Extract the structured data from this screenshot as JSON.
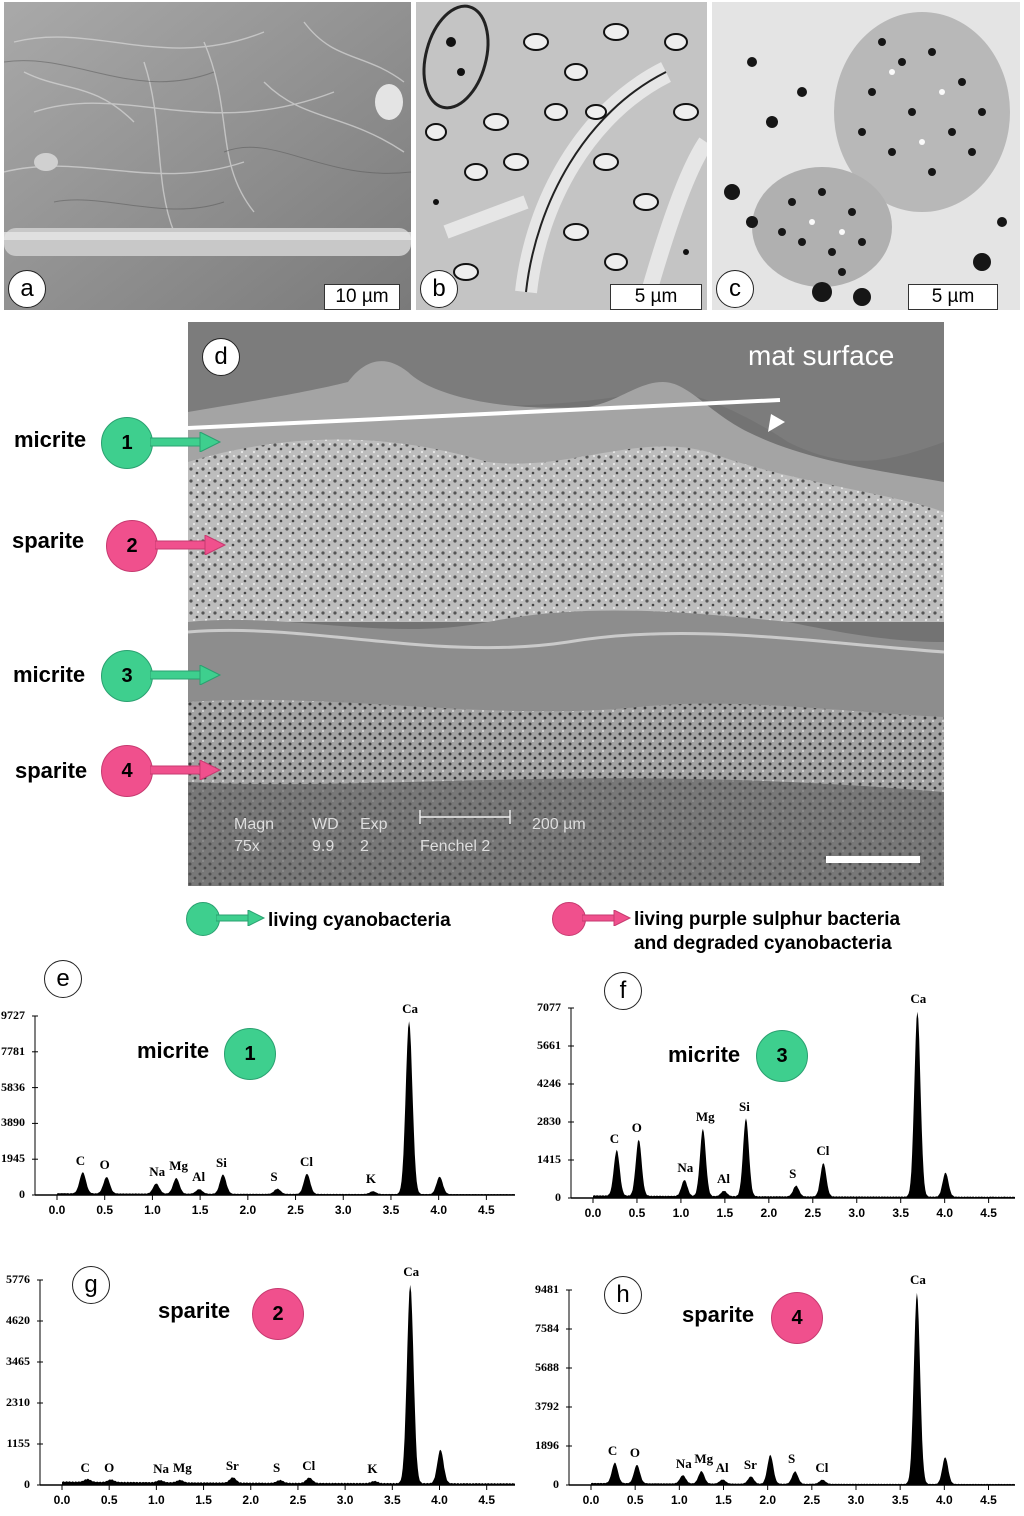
{
  "panels_top": [
    {
      "letter": "a",
      "scale": "10 µm"
    },
    {
      "letter": "b",
      "scale": "5 µm"
    },
    {
      "letter": "c",
      "scale": "5 µm"
    }
  ],
  "panel_d": {
    "letter": "d",
    "annotation": "mat surface",
    "sem_info": {
      "magn_label": "Magn",
      "magn_value": "75x",
      "wd_label": "WD",
      "wd_value": "9.9",
      "exp_label": "Exp",
      "exp_value": "2",
      "scale": "200 µm",
      "sample": "Fenchel 2"
    },
    "layers": [
      {
        "name": "micrite",
        "number": "1",
        "type": "green"
      },
      {
        "name": "sparite",
        "number": "2",
        "type": "pink"
      },
      {
        "name": "micrite",
        "number": "3",
        "type": "green"
      },
      {
        "name": "sparite",
        "number": "4",
        "type": "pink"
      }
    ]
  },
  "legend": {
    "green_label": "living cyanobacteria",
    "pink_label_line1": "living purple sulphur bacteria",
    "pink_label_line2": "and degraded cyanobacteria",
    "green_color": "#3ecf8e",
    "pink_color": "#f0508d"
  },
  "chart_data": [
    {
      "type": "line",
      "panel": "e",
      "label": "micrite",
      "number": "1",
      "ymax": 9727,
      "yticks": [
        "9727",
        "7781",
        "5836",
        "3890",
        "1945",
        "0"
      ],
      "xticks": [
        "0.0",
        "0.5",
        "1.0",
        "1.5",
        "2.0",
        "2.5",
        "3.0",
        "3.5",
        "4.0",
        "4.5"
      ],
      "peaks": [
        {
          "element": "C",
          "energy": 0.27,
          "counts": 1150
        },
        {
          "element": "O",
          "energy": 0.52,
          "counts": 900
        },
        {
          "element": "Na",
          "energy": 1.04,
          "counts": 550
        },
        {
          "element": "Mg",
          "energy": 1.25,
          "counts": 850
        },
        {
          "element": "Al",
          "energy": 1.49,
          "counts": 250
        },
        {
          "element": "Si",
          "energy": 1.74,
          "counts": 1050
        },
        {
          "element": "S",
          "energy": 2.31,
          "counts": 280
        },
        {
          "element": "Cl",
          "energy": 2.62,
          "counts": 1100
        },
        {
          "element": "K",
          "energy": 3.31,
          "counts": 150
        },
        {
          "element": "Ca",
          "energy": 3.69,
          "counts": 9400
        },
        {
          "element": "",
          "energy": 4.01,
          "counts": 950
        }
      ]
    },
    {
      "type": "line",
      "panel": "f",
      "label": "micrite",
      "number": "3",
      "ymax": 7077,
      "yticks": [
        "7077",
        "5661",
        "4246",
        "2830",
        "1415",
        "0"
      ],
      "xticks": [
        "0.0",
        "0.5",
        "1.0",
        "1.5",
        "2.0",
        "2.5",
        "3.0",
        "3.5",
        "4.0",
        "4.5"
      ],
      "peaks": [
        {
          "element": "C",
          "energy": 0.27,
          "counts": 1700
        },
        {
          "element": "O",
          "energy": 0.52,
          "counts": 2100
        },
        {
          "element": "Na",
          "energy": 1.04,
          "counts": 600
        },
        {
          "element": "Mg",
          "energy": 1.25,
          "counts": 2500
        },
        {
          "element": "Al",
          "energy": 1.49,
          "counts": 200
        },
        {
          "element": "Si",
          "energy": 1.74,
          "counts": 2900
        },
        {
          "element": "S",
          "energy": 2.31,
          "counts": 400
        },
        {
          "element": "Cl",
          "energy": 2.62,
          "counts": 1250
        },
        {
          "element": "Ca",
          "energy": 3.69,
          "counts": 6900
        },
        {
          "element": "",
          "energy": 4.01,
          "counts": 900
        }
      ]
    },
    {
      "type": "line",
      "panel": "g",
      "label": "sparite",
      "number": "2",
      "ymax": 5776,
      "yticks": [
        "5776",
        "4620",
        "3465",
        "2310",
        "1155",
        "0"
      ],
      "xticks": [
        "0.0",
        "0.5",
        "1.0",
        "1.5",
        "2.0",
        "2.5",
        "3.0",
        "3.5",
        "4.0",
        "4.5"
      ],
      "peaks": [
        {
          "element": "C",
          "energy": 0.27,
          "counts": 80
        },
        {
          "element": "O",
          "energy": 0.52,
          "counts": 70
        },
        {
          "element": "Na",
          "energy": 1.04,
          "counts": 60
        },
        {
          "element": "Mg",
          "energy": 1.25,
          "counts": 70
        },
        {
          "element": "Sr",
          "energy": 1.81,
          "counts": 150
        },
        {
          "element": "S",
          "energy": 2.31,
          "counts": 80
        },
        {
          "element": "Cl",
          "energy": 2.62,
          "counts": 150
        },
        {
          "element": "K",
          "energy": 3.31,
          "counts": 60
        },
        {
          "element": "Ca",
          "energy": 3.69,
          "counts": 5600
        },
        {
          "element": "",
          "energy": 4.01,
          "counts": 950
        }
      ]
    },
    {
      "type": "line",
      "panel": "h",
      "label": "sparite",
      "number": "4",
      "ymax": 9481,
      "yticks": [
        "9481",
        "7584",
        "5688",
        "3792",
        "1896",
        "0"
      ],
      "xticks": [
        "0.0",
        "0.5",
        "1.0",
        "1.5",
        "2.0",
        "2.5",
        "3.0",
        "3.5",
        "4.0",
        "4.5"
      ],
      "peaks": [
        {
          "element": "C",
          "energy": 0.27,
          "counts": 1000
        },
        {
          "element": "O",
          "energy": 0.52,
          "counts": 900
        },
        {
          "element": "Na",
          "energy": 1.04,
          "counts": 400
        },
        {
          "element": "Mg",
          "energy": 1.25,
          "counts": 600
        },
        {
          "element": "Al",
          "energy": 1.49,
          "counts": 200
        },
        {
          "element": "Sr",
          "energy": 1.81,
          "counts": 350
        },
        {
          "element": "",
          "energy": 2.03,
          "counts": 1400
        },
        {
          "element": "S",
          "energy": 2.31,
          "counts": 600
        },
        {
          "element": "Cl",
          "energy": 2.62,
          "counts": 200
        },
        {
          "element": "Ca",
          "energy": 3.69,
          "counts": 9300
        },
        {
          "element": "",
          "energy": 4.01,
          "counts": 1300
        }
      ]
    }
  ]
}
